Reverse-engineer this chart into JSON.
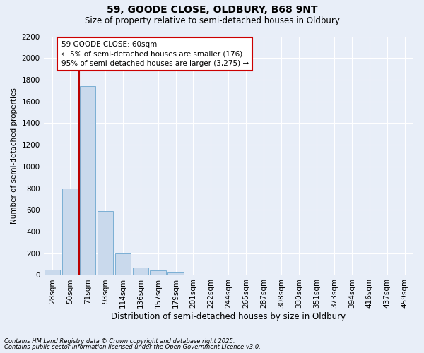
{
  "title1": "59, GOODE CLOSE, OLDBURY, B68 9NT",
  "title2": "Size of property relative to semi-detached houses in Oldbury",
  "xlabel": "Distribution of semi-detached houses by size in Oldbury",
  "ylabel": "Number of semi-detached properties",
  "categories": [
    "28sqm",
    "50sqm",
    "71sqm",
    "93sqm",
    "114sqm",
    "136sqm",
    "157sqm",
    "179sqm",
    "201sqm",
    "222sqm",
    "244sqm",
    "265sqm",
    "287sqm",
    "308sqm",
    "330sqm",
    "351sqm",
    "373sqm",
    "394sqm",
    "416sqm",
    "437sqm",
    "459sqm"
  ],
  "values": [
    50,
    800,
    1740,
    590,
    200,
    65,
    40,
    30,
    5,
    0,
    5,
    0,
    0,
    0,
    0,
    0,
    0,
    0,
    0,
    0,
    0
  ],
  "bar_color": "#c9d9ec",
  "bar_edge_color": "#7bafd4",
  "vline_x": 1.5,
  "vline_color": "#bb0000",
  "ylim": [
    0,
    2200
  ],
  "yticks": [
    0,
    200,
    400,
    600,
    800,
    1000,
    1200,
    1400,
    1600,
    1800,
    2000,
    2200
  ],
  "annotation_title": "59 GOODE CLOSE: 60sqm",
  "annotation_line1": "← 5% of semi-detached houses are smaller (176)",
  "annotation_line2": "95% of semi-detached houses are larger (3,275) →",
  "annotation_box_facecolor": "#ffffff",
  "annotation_box_edgecolor": "#cc0000",
  "footnote1": "Contains HM Land Registry data © Crown copyright and database right 2025.",
  "footnote2": "Contains public sector information licensed under the Open Government Licence v3.0.",
  "bg_color": "#e8eef8",
  "plot_bg_color": "#e8eef8",
  "grid_color": "#ffffff",
  "title1_fontsize": 10,
  "title2_fontsize": 8.5,
  "xlabel_fontsize": 8.5,
  "ylabel_fontsize": 7.5,
  "tick_fontsize": 7.5,
  "annot_fontsize": 7.5,
  "footnote_fontsize": 6.0
}
